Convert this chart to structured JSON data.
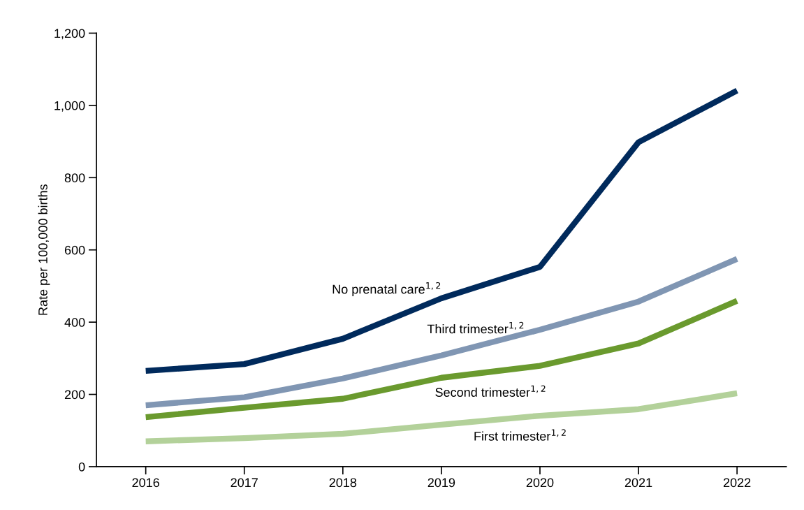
{
  "chart_data": {
    "type": "line",
    "ylabel": "Rate per 100,000 births",
    "categories": [
      "2016",
      "2017",
      "2018",
      "2019",
      "2020",
      "2021",
      "2022"
    ],
    "ylim": [
      0,
      1200
    ],
    "yticks": [
      0,
      200,
      400,
      600,
      800,
      {
        "value": 1000,
        "label": "1,000"
      },
      {
        "value": 1200,
        "label": "1,200"
      }
    ],
    "grid": false,
    "legend": false,
    "marker": "none",
    "line_style": "solid",
    "series": [
      {
        "name": "No prenatal care$^{1,2}$",
        "color": "#002a5c",
        "values": [
          265,
          284,
          354,
          466,
          553,
          898,
          1041
        ]
      },
      {
        "name": "Third trimester$^{1,2}$",
        "color": "#8096b3",
        "values": [
          170,
          192,
          244,
          308,
          379,
          457,
          575
        ]
      },
      {
        "name": "Second trimester$^{1,2}$",
        "color": "#6a9a2e",
        "values": [
          137,
          163,
          188,
          246,
          279,
          341,
          459
        ]
      },
      {
        "name": "First trimester$^{1,2}$",
        "color": "#b3d19a",
        "values": [
          70,
          79,
          91,
          116,
          141,
          159,
          203
        ]
      }
    ]
  }
}
